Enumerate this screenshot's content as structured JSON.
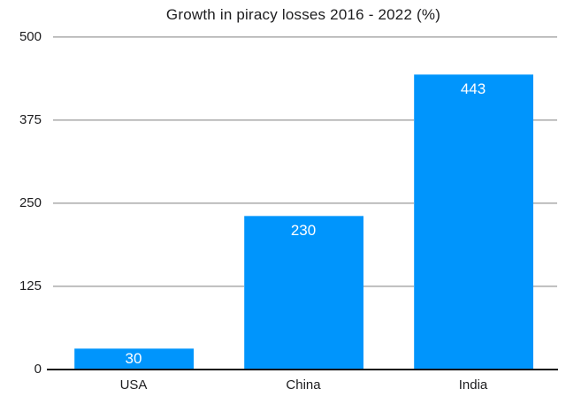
{
  "chart_data": {
    "type": "bar",
    "title": "Growth in piracy losses 2016 - 2022 (%)",
    "categories": [
      "USA",
      "China",
      "India"
    ],
    "values": [
      30,
      230,
      443
    ],
    "xlabel": "",
    "ylabel": "",
    "ylim": [
      0,
      500
    ],
    "yticks": [
      0,
      125,
      250,
      375,
      500
    ],
    "grid": true,
    "legend": false,
    "bar_color": "#0095FC",
    "bar_label_color": "#FFFFFF",
    "gridline_color": "#ABABAB",
    "axis_line_color": "#141414",
    "text_color": "#1D1D1F",
    "background_color": "#FFFFFF"
  }
}
